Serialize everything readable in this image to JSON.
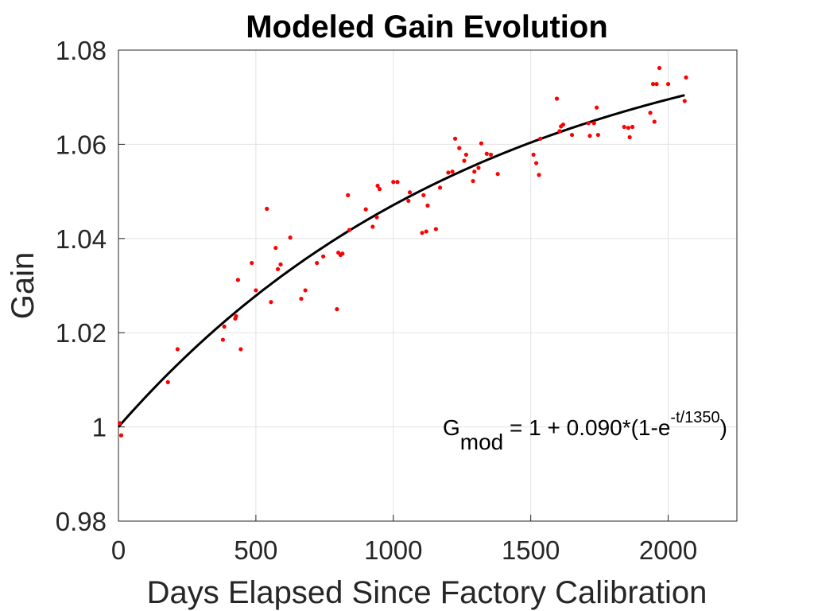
{
  "chart_data": {
    "type": "scatter",
    "title": "Modeled Gain Evolution",
    "xlabel": "Days Elapsed Since Factory Calibration",
    "ylabel": "Gain",
    "xlim": [
      0,
      2250
    ],
    "ylim": [
      0.98,
      1.08
    ],
    "xticks": [
      0,
      500,
      1000,
      1500,
      2000
    ],
    "xtick_labels": [
      "0",
      "500",
      "1000",
      "1500",
      "2000"
    ],
    "yticks": [
      0.98,
      1.0,
      1.02,
      1.04,
      1.06,
      1.08
    ],
    "ytick_labels": [
      "0.98",
      "1",
      "1.02",
      "1.04",
      "1.06",
      "1.08"
    ],
    "grid": true,
    "annotation": {
      "base": "G",
      "sub": "mod",
      "middle": " = 1 + 0.090*(1-e",
      "sup": "-t/1350",
      "end": ")"
    },
    "model": {
      "a": 0.09,
      "tau": 1350,
      "x_end": 2060,
      "color": "#000000"
    },
    "points_color": "#ff0000",
    "points": [
      [
        5,
        1.0008
      ],
      [
        10,
        0.9982
      ],
      [
        180,
        1.0095
      ],
      [
        215,
        1.0165
      ],
      [
        380,
        1.0185
      ],
      [
        385,
        1.0213
      ],
      [
        425,
        1.023
      ],
      [
        428,
        1.0235
      ],
      [
        435,
        1.0312
      ],
      [
        445,
        1.0165
      ],
      [
        485,
        1.0348
      ],
      [
        500,
        1.029
      ],
      [
        540,
        1.0463
      ],
      [
        555,
        1.0265
      ],
      [
        572,
        1.038
      ],
      [
        580,
        1.0335
      ],
      [
        590,
        1.0345
      ],
      [
        625,
        1.0402
      ],
      [
        665,
        1.0272
      ],
      [
        680,
        1.029
      ],
      [
        722,
        1.0348
      ],
      [
        745,
        1.0362
      ],
      [
        795,
        1.025
      ],
      [
        800,
        1.037
      ],
      [
        808,
        1.0365
      ],
      [
        815,
        1.0368
      ],
      [
        835,
        1.0492
      ],
      [
        840,
        1.0418
      ],
      [
        900,
        1.0462
      ],
      [
        925,
        1.0425
      ],
      [
        940,
        1.0445
      ],
      [
        943,
        1.0512
      ],
      [
        950,
        1.0505
      ],
      [
        1000,
        1.052
      ],
      [
        1015,
        1.052
      ],
      [
        1055,
        1.048
      ],
      [
        1060,
        1.0498
      ],
      [
        1105,
        1.0412
      ],
      [
        1110,
        1.0492
      ],
      [
        1120,
        1.0415
      ],
      [
        1125,
        1.047
      ],
      [
        1155,
        1.042
      ],
      [
        1170,
        1.0508
      ],
      [
        1200,
        1.054
      ],
      [
        1215,
        1.0542
      ],
      [
        1225,
        1.0612
      ],
      [
        1240,
        1.0592
      ],
      [
        1258,
        1.0565
      ],
      [
        1265,
        1.0578
      ],
      [
        1290,
        1.0522
      ],
      [
        1295,
        1.0542
      ],
      [
        1310,
        1.055
      ],
      [
        1320,
        1.0602
      ],
      [
        1340,
        1.058
      ],
      [
        1355,
        1.0578
      ],
      [
        1380,
        1.0537
      ],
      [
        1510,
        1.0578
      ],
      [
        1520,
        1.056
      ],
      [
        1530,
        1.0535
      ],
      [
        1535,
        1.0612
      ],
      [
        1595,
        1.0697
      ],
      [
        1605,
        1.0628
      ],
      [
        1610,
        1.0638
      ],
      [
        1618,
        1.0642
      ],
      [
        1650,
        1.062
      ],
      [
        1710,
        1.0645
      ],
      [
        1715,
        1.0618
      ],
      [
        1730,
        1.0645
      ],
      [
        1740,
        1.0678
      ],
      [
        1745,
        1.062
      ],
      [
        1840,
        1.0637
      ],
      [
        1855,
        1.0635
      ],
      [
        1860,
        1.0615
      ],
      [
        1870,
        1.0637
      ],
      [
        1935,
        1.0667
      ],
      [
        1945,
        1.0728
      ],
      [
        1950,
        1.0648
      ],
      [
        1958,
        1.0728
      ],
      [
        1968,
        1.0762
      ],
      [
        2000,
        1.0728
      ],
      [
        2060,
        1.0692
      ],
      [
        2065,
        1.0742
      ]
    ]
  }
}
